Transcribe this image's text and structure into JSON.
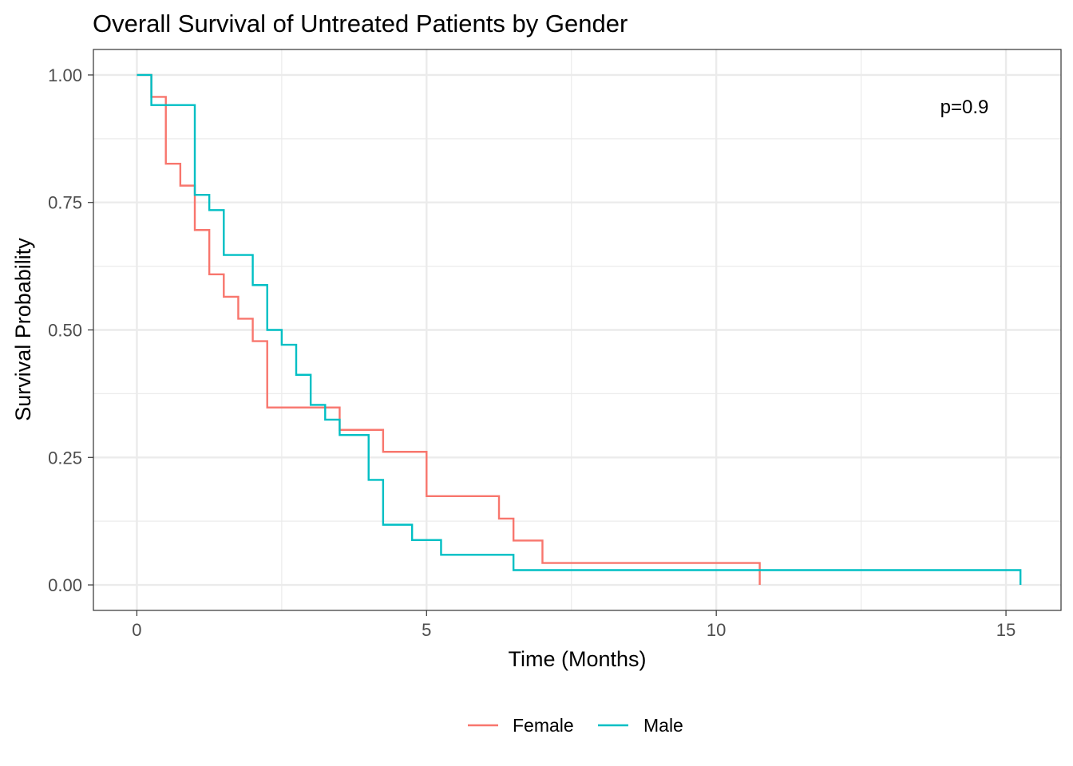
{
  "chart_data": {
    "type": "line",
    "subtype": "kaplan-meier step",
    "title": "Overall Survival of Untreated Patients by Gender",
    "xlabel": "Time (Months)",
    "ylabel": "Survival Probability",
    "xlim": [
      -0.75,
      15.95
    ],
    "ylim": [
      -0.05,
      1.05
    ],
    "x_ticks": [
      0,
      5,
      10,
      15
    ],
    "x_tick_labels": [
      "0",
      "5",
      "10",
      "15"
    ],
    "y_ticks": [
      0,
      0.25,
      0.5,
      0.75,
      1.0
    ],
    "y_tick_labels": [
      "0.00",
      "0.25",
      "0.50",
      "0.75",
      "1.00"
    ],
    "grid": true,
    "annotation": "p=0.9",
    "legend": {
      "position": "bottom",
      "entries": [
        "Female",
        "Male"
      ]
    },
    "series": [
      {
        "name": "Female",
        "color": "#F8766D",
        "times": [
          0,
          0.25,
          0.5,
          0.75,
          1.0,
          1.25,
          1.5,
          1.75,
          2.0,
          2.25,
          3.5,
          4.25,
          5.0,
          6.25,
          6.5,
          7.0,
          10.75
        ],
        "surv": [
          1.0,
          0.957,
          0.826,
          0.783,
          0.696,
          0.609,
          0.565,
          0.522,
          0.478,
          0.348,
          0.304,
          0.261,
          0.174,
          0.13,
          0.087,
          0.043,
          0.0
        ]
      },
      {
        "name": "Male",
        "color": "#00BFC4",
        "times": [
          0,
          0.25,
          1.0,
          1.25,
          1.5,
          2.0,
          2.25,
          2.5,
          2.75,
          3.0,
          3.25,
          3.5,
          4.0,
          4.25,
          4.75,
          5.25,
          6.5,
          15.25
        ],
        "surv": [
          1.0,
          0.941,
          0.765,
          0.735,
          0.647,
          0.588,
          0.5,
          0.471,
          0.412,
          0.353,
          0.324,
          0.294,
          0.206,
          0.118,
          0.088,
          0.059,
          0.029,
          0.0
        ]
      }
    ]
  }
}
